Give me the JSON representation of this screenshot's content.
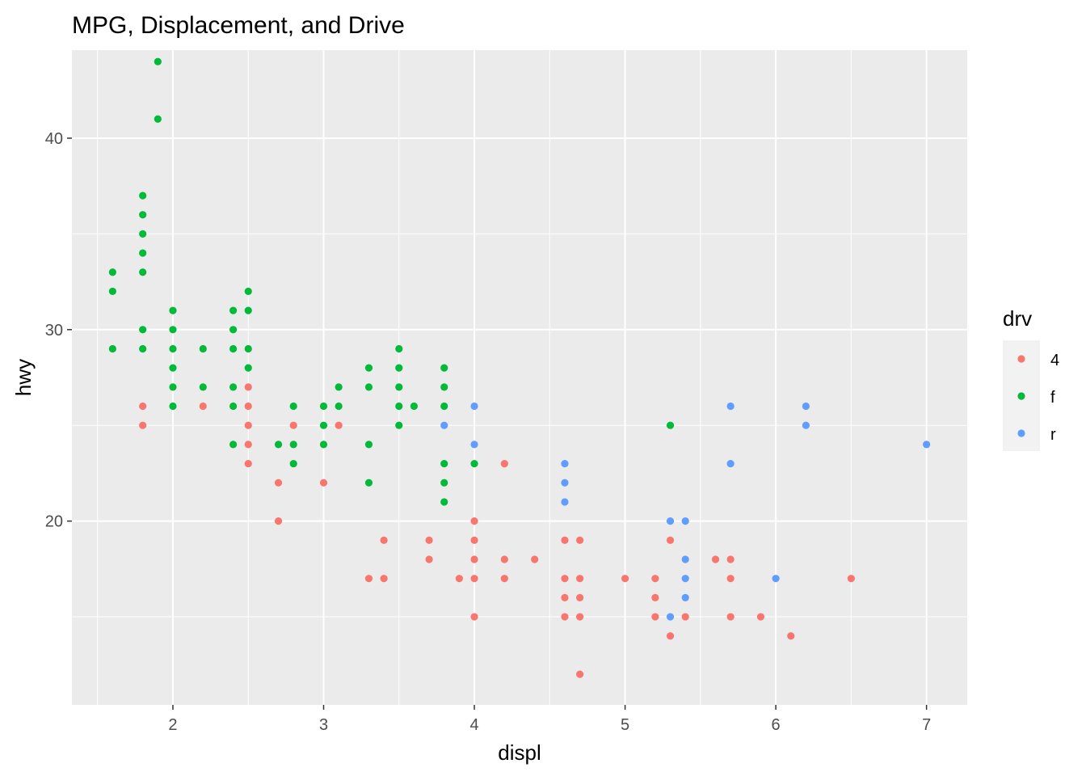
{
  "chart_data": {
    "type": "scatter",
    "title": "MPG, Displacement, and Drive",
    "xlabel": "displ",
    "ylabel": "hwy",
    "xlim": [
      1.33,
      7.27
    ],
    "ylim": [
      10.4,
      44.6
    ],
    "x_ticks": [
      2,
      3,
      4,
      5,
      6,
      7
    ],
    "y_ticks": [
      20,
      30,
      40
    ],
    "grid": true,
    "panel_background": "#EBEBEB",
    "legend": {
      "title": "drv",
      "position": "right",
      "entries": [
        {
          "label": "4",
          "color": "#F8766D"
        },
        {
          "label": "f",
          "color": "#00BA38"
        },
        {
          "label": "r",
          "color": "#619CFF"
        }
      ]
    },
    "series": [
      {
        "name": "4",
        "color": "#F8766D",
        "points": [
          [
            1.8,
            26
          ],
          [
            1.8,
            25
          ],
          [
            2.2,
            26
          ],
          [
            2.5,
            27
          ],
          [
            2.5,
            26
          ],
          [
            2.5,
            25
          ],
          [
            2.5,
            24
          ],
          [
            2.5,
            23
          ],
          [
            2.7,
            22
          ],
          [
            2.7,
            20
          ],
          [
            2.8,
            25
          ],
          [
            3.0,
            22
          ],
          [
            3.1,
            25
          ],
          [
            3.3,
            17
          ],
          [
            3.4,
            19
          ],
          [
            3.4,
            17
          ],
          [
            3.7,
            19
          ],
          [
            3.7,
            18
          ],
          [
            3.9,
            17
          ],
          [
            4.0,
            20
          ],
          [
            4.0,
            19
          ],
          [
            4.0,
            18
          ],
          [
            4.0,
            17
          ],
          [
            4.0,
            15
          ],
          [
            4.2,
            23
          ],
          [
            4.2,
            18
          ],
          [
            4.2,
            17
          ],
          [
            4.4,
            18
          ],
          [
            4.6,
            19
          ],
          [
            4.6,
            17
          ],
          [
            4.6,
            16
          ],
          [
            4.6,
            15
          ],
          [
            4.7,
            19
          ],
          [
            4.7,
            17
          ],
          [
            4.7,
            16
          ],
          [
            4.7,
            15
          ],
          [
            4.7,
            12
          ],
          [
            5.0,
            17
          ],
          [
            5.2,
            17
          ],
          [
            5.2,
            16
          ],
          [
            5.2,
            15
          ],
          [
            5.3,
            19
          ],
          [
            5.3,
            14
          ],
          [
            5.4,
            15
          ],
          [
            5.6,
            18
          ],
          [
            5.7,
            18
          ],
          [
            5.7,
            17
          ],
          [
            5.7,
            15
          ],
          [
            5.9,
            15
          ],
          [
            6.1,
            14
          ],
          [
            6.5,
            17
          ]
        ]
      },
      {
        "name": "f",
        "color": "#00BA38",
        "points": [
          [
            1.6,
            33
          ],
          [
            1.6,
            32
          ],
          [
            1.6,
            29
          ],
          [
            1.8,
            37
          ],
          [
            1.8,
            36
          ],
          [
            1.8,
            35
          ],
          [
            1.8,
            34
          ],
          [
            1.8,
            33
          ],
          [
            1.8,
            30
          ],
          [
            1.8,
            29
          ],
          [
            1.9,
            44
          ],
          [
            1.9,
            41
          ],
          [
            2.0,
            31
          ],
          [
            2.0,
            30
          ],
          [
            2.0,
            29
          ],
          [
            2.0,
            28
          ],
          [
            2.0,
            27
          ],
          [
            2.0,
            26
          ],
          [
            2.2,
            29
          ],
          [
            2.2,
            27
          ],
          [
            2.4,
            31
          ],
          [
            2.4,
            30
          ],
          [
            2.4,
            29
          ],
          [
            2.4,
            27
          ],
          [
            2.4,
            26
          ],
          [
            2.4,
            24
          ],
          [
            2.5,
            32
          ],
          [
            2.5,
            31
          ],
          [
            2.5,
            29
          ],
          [
            2.5,
            28
          ],
          [
            2.7,
            24
          ],
          [
            2.8,
            26
          ],
          [
            2.8,
            24
          ],
          [
            2.8,
            23
          ],
          [
            3.0,
            26
          ],
          [
            3.0,
            25
          ],
          [
            3.0,
            24
          ],
          [
            3.1,
            27
          ],
          [
            3.1,
            26
          ],
          [
            3.3,
            28
          ],
          [
            3.3,
            27
          ],
          [
            3.3,
            24
          ],
          [
            3.3,
            22
          ],
          [
            3.5,
            29
          ],
          [
            3.5,
            28
          ],
          [
            3.5,
            27
          ],
          [
            3.5,
            26
          ],
          [
            3.5,
            25
          ],
          [
            3.6,
            26
          ],
          [
            3.8,
            28
          ],
          [
            3.8,
            27
          ],
          [
            3.8,
            26
          ],
          [
            3.8,
            23
          ],
          [
            3.8,
            22
          ],
          [
            3.8,
            21
          ],
          [
            4.0,
            23
          ],
          [
            5.3,
            25
          ]
        ]
      },
      {
        "name": "r",
        "color": "#619CFF",
        "points": [
          [
            3.8,
            25
          ],
          [
            4.0,
            26
          ],
          [
            4.0,
            24
          ],
          [
            4.6,
            23
          ],
          [
            4.6,
            22
          ],
          [
            4.6,
            21
          ],
          [
            5.3,
            20
          ],
          [
            5.3,
            15
          ],
          [
            5.4,
            20
          ],
          [
            5.4,
            18
          ],
          [
            5.4,
            17
          ],
          [
            5.4,
            16
          ],
          [
            5.7,
            26
          ],
          [
            5.7,
            23
          ],
          [
            6.0,
            17
          ],
          [
            6.2,
            26
          ],
          [
            6.2,
            25
          ],
          [
            7.0,
            24
          ]
        ]
      }
    ]
  }
}
